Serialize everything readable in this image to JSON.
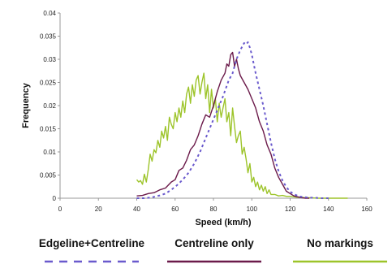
{
  "chart_data": {
    "type": "line",
    "title": "",
    "xlabel": "Speed (km/h)",
    "ylabel": "Frequency",
    "xlim": [
      0,
      160
    ],
    "ylim": [
      0,
      0.04
    ],
    "xticks": [
      0,
      20,
      40,
      60,
      80,
      100,
      120,
      140,
      160
    ],
    "yticks": [
      0,
      0.005,
      0.01,
      0.015,
      0.02,
      0.025,
      0.03,
      0.035,
      0.04
    ],
    "xtick_labels": [
      "0",
      "20",
      "40",
      "60",
      "80",
      "100",
      "120",
      "140",
      "160"
    ],
    "ytick_labels": [
      "0",
      "0.005",
      "0.01",
      "0.015",
      "0.02",
      "0.025",
      "0.03",
      "0.035",
      "0.04"
    ],
    "grid": false,
    "legend_position": "bottom",
    "series": [
      {
        "name": "Edgeline+Centreline",
        "color": "#6a5acd",
        "style": "dashed",
        "x": [
          40,
          44,
          48,
          52,
          55,
          58,
          61,
          64,
          67,
          70,
          73,
          76,
          79,
          82,
          85,
          88,
          90,
          92,
          94,
          96,
          97,
          98,
          99,
          100,
          101,
          102,
          104,
          106,
          108,
          110,
          112,
          114,
          116,
          118,
          120,
          122,
          124,
          126,
          128,
          130,
          133,
          136,
          140
        ],
        "y": [
          0,
          0,
          0.0002,
          0.0006,
          0.001,
          0.0018,
          0.0028,
          0.004,
          0.0055,
          0.0075,
          0.01,
          0.013,
          0.016,
          0.019,
          0.022,
          0.0255,
          0.027,
          0.03,
          0.032,
          0.0335,
          0.0332,
          0.0337,
          0.0325,
          0.031,
          0.029,
          0.027,
          0.0235,
          0.02,
          0.016,
          0.012,
          0.0085,
          0.0058,
          0.0038,
          0.0024,
          0.0014,
          0.0009,
          0.0005,
          0.0003,
          0.0002,
          0.0001,
          0.0001,
          0,
          0
        ]
      },
      {
        "name": "Centreline only",
        "color": "#6b1a4a",
        "style": "solid",
        "x": [
          40,
          43,
          46,
          49,
          52,
          55,
          58,
          60,
          62,
          64,
          66,
          68,
          70,
          72,
          74,
          76,
          78,
          80,
          82,
          84,
          86,
          87,
          88,
          89,
          90,
          91,
          92,
          93,
          94,
          96,
          98,
          100,
          102,
          104,
          106,
          108,
          110,
          112,
          114,
          116,
          118,
          120,
          122,
          124,
          126,
          128,
          130
        ],
        "y": [
          0.0005,
          0.0006,
          0.001,
          0.0012,
          0.0018,
          0.0022,
          0.0035,
          0.004,
          0.006,
          0.0065,
          0.0082,
          0.0105,
          0.0115,
          0.0135,
          0.016,
          0.018,
          0.0175,
          0.02,
          0.023,
          0.0255,
          0.027,
          0.029,
          0.0285,
          0.031,
          0.0315,
          0.0285,
          0.03,
          0.028,
          0.0265,
          0.025,
          0.0235,
          0.0215,
          0.0195,
          0.0165,
          0.0145,
          0.0115,
          0.0095,
          0.0065,
          0.0045,
          0.003,
          0.0015,
          0.001,
          0.0005,
          0.0003,
          0.0001,
          0,
          0
        ]
      },
      {
        "name": "No markings",
        "color": "#9dc42a",
        "style": "solid",
        "x": [
          40,
          41,
          42,
          43,
          44,
          45,
          46,
          47,
          48,
          49,
          50,
          51,
          52,
          53,
          54,
          55,
          56,
          57,
          58,
          59,
          60,
          61,
          62,
          63,
          64,
          65,
          66,
          67,
          68,
          69,
          70,
          71,
          72,
          73,
          74,
          75,
          76,
          77,
          78,
          79,
          80,
          81,
          82,
          83,
          84,
          85,
          86,
          87,
          88,
          89,
          90,
          91,
          92,
          93,
          94,
          95,
          96,
          97,
          98,
          99,
          100,
          101,
          102,
          103,
          104,
          105,
          106,
          107,
          108,
          109,
          110,
          112,
          114,
          116,
          118,
          120,
          122,
          124,
          126,
          128,
          130,
          135,
          140,
          145,
          150
        ],
        "y": [
          0.004,
          0.0035,
          0.0038,
          0.003,
          0.0052,
          0.0035,
          0.0062,
          0.0095,
          0.008,
          0.0105,
          0.0098,
          0.0125,
          0.011,
          0.0145,
          0.013,
          0.0155,
          0.0125,
          0.0175,
          0.016,
          0.015,
          0.0185,
          0.0165,
          0.0195,
          0.0175,
          0.021,
          0.0185,
          0.0225,
          0.024,
          0.0205,
          0.0245,
          0.022,
          0.0255,
          0.0265,
          0.0225,
          0.025,
          0.027,
          0.0215,
          0.0245,
          0.0185,
          0.0235,
          0.0195,
          0.0215,
          0.0165,
          0.0205,
          0.0175,
          0.0195,
          0.0215,
          0.0165,
          0.0185,
          0.0135,
          0.0195,
          0.0155,
          0.012,
          0.0135,
          0.0145,
          0.0095,
          0.011,
          0.0085,
          0.0055,
          0.0075,
          0.0035,
          0.0045,
          0.0025,
          0.0035,
          0.0018,
          0.0028,
          0.0015,
          0.0025,
          0.001,
          0.0018,
          0.0008,
          0.0008,
          0.0005,
          0.0006,
          0.0004,
          0.0004,
          0.0003,
          0.0002,
          0.0002,
          0.0001,
          0.0001,
          0,
          0,
          0,
          0
        ]
      }
    ]
  }
}
